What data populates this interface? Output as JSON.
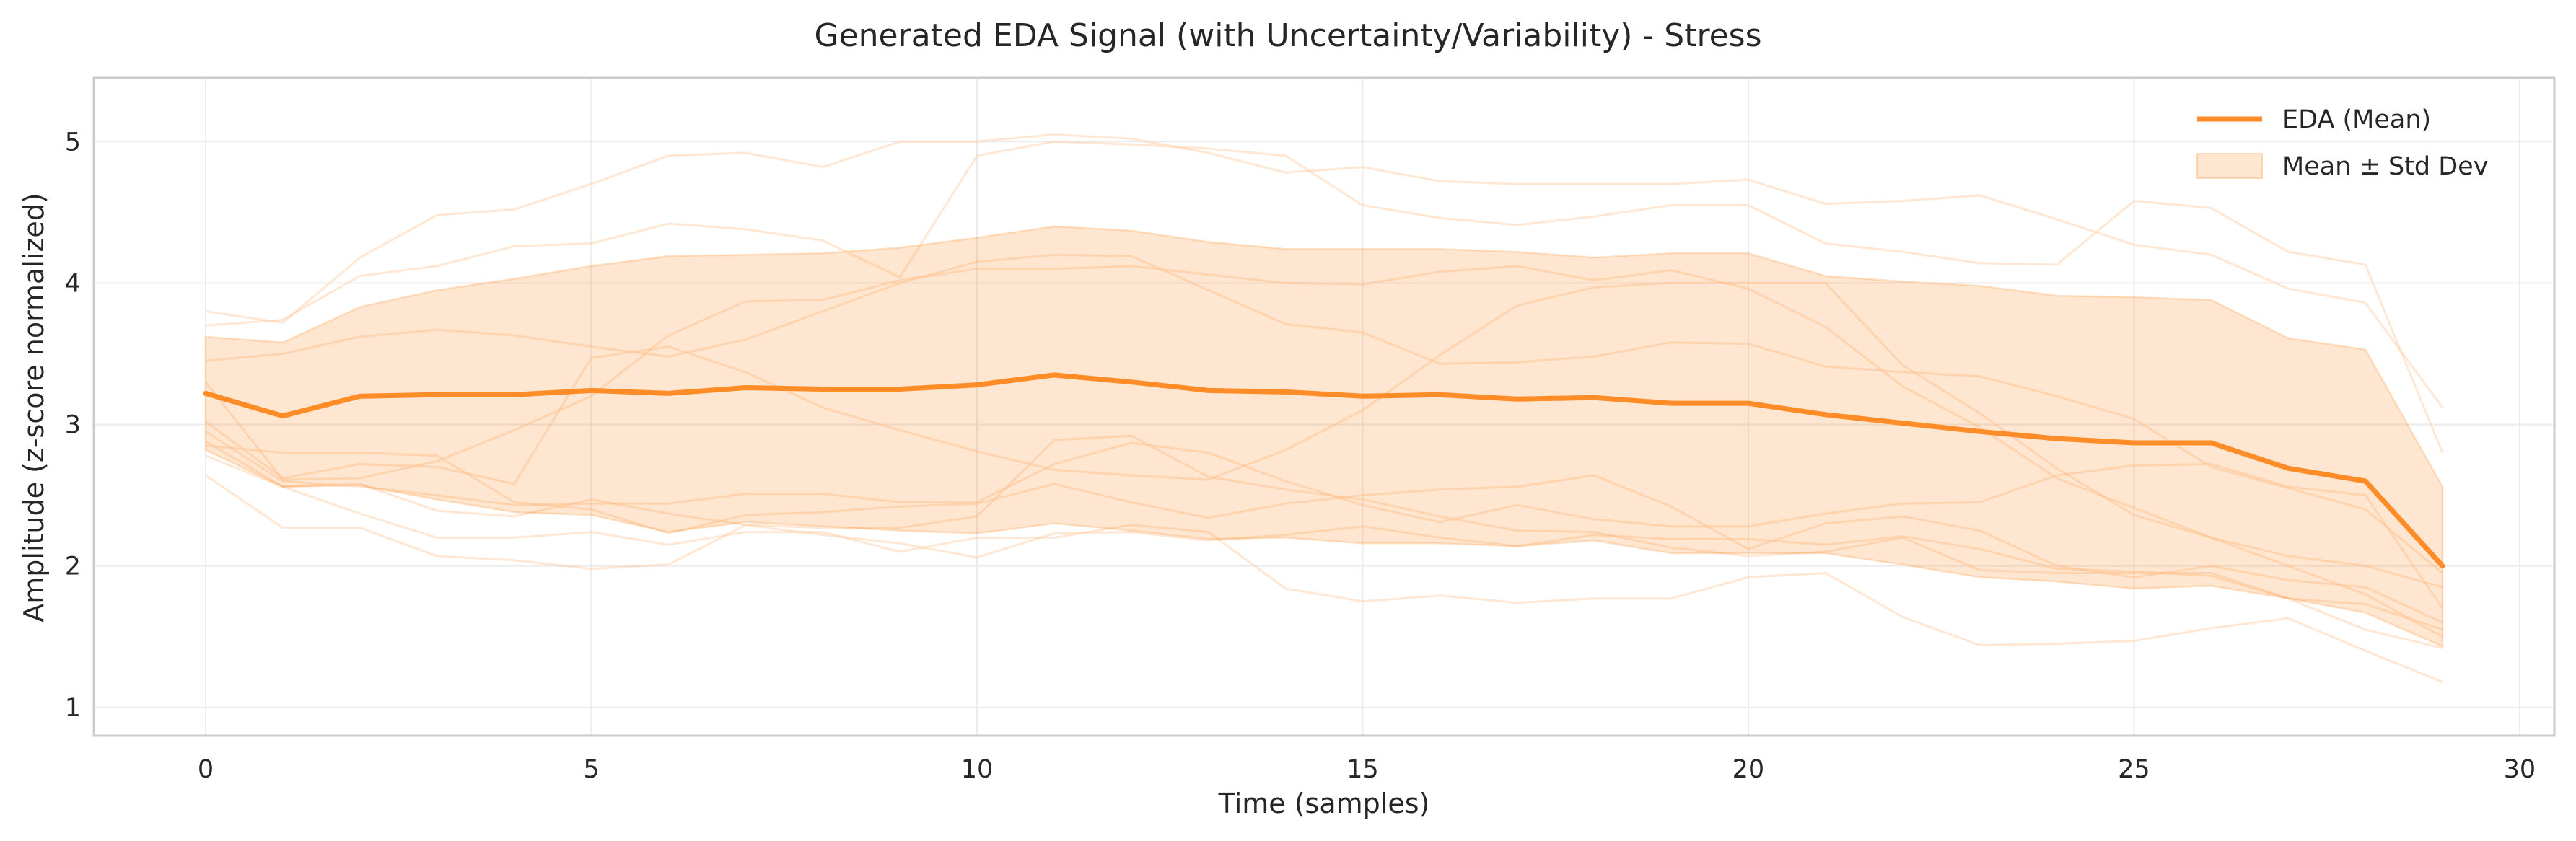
{
  "chart_data": {
    "type": "line",
    "title": "Generated EDA Signal (with Uncertainty/Variability) - Stress",
    "xlabel": "Time (samples)",
    "ylabel": "Amplitude (z-score normalized)",
    "xlim": [
      -1.45,
      30.45
    ],
    "ylim": [
      0.8,
      5.45
    ],
    "xticks": [
      0,
      5,
      10,
      15,
      20,
      25,
      30
    ],
    "yticks": [
      1,
      2,
      3,
      4,
      5
    ],
    "grid": true,
    "legend_position": "top-right",
    "colors": {
      "mean": "#ff8c27",
      "band": "#ffe4cc",
      "band_edge": "#f9cfa8",
      "samples": "#ffc9a0"
    },
    "x": [
      0,
      1,
      2,
      3,
      4,
      5,
      6,
      7,
      8,
      9,
      10,
      11,
      12,
      13,
      14,
      15,
      16,
      17,
      18,
      19,
      20,
      21,
      22,
      23,
      24,
      25,
      26,
      27,
      28,
      29
    ],
    "series": [
      {
        "name": "EDA (Mean)",
        "role": "mean",
        "values": [
          3.22,
          3.06,
          3.2,
          3.21,
          3.21,
          3.24,
          3.22,
          3.26,
          3.25,
          3.25,
          3.28,
          3.35,
          3.3,
          3.24,
          3.23,
          3.2,
          3.21,
          3.18,
          3.19,
          3.15,
          3.15,
          3.07,
          3.01,
          2.95,
          2.9,
          2.87,
          2.87,
          2.69,
          2.6,
          2.0
        ]
      },
      {
        "name": "Mean ± Std Dev",
        "role": "band",
        "upper": [
          3.62,
          3.58,
          3.83,
          3.95,
          4.03,
          4.12,
          4.19,
          4.2,
          4.21,
          4.25,
          4.32,
          4.4,
          4.37,
          4.29,
          4.24,
          4.24,
          4.24,
          4.22,
          4.18,
          4.21,
          4.21,
          4.05,
          4.01,
          3.98,
          3.91,
          3.9,
          3.88,
          3.61,
          3.53,
          2.56
        ],
        "lower": [
          2.82,
          2.56,
          2.57,
          2.47,
          2.38,
          2.36,
          2.24,
          2.31,
          2.28,
          2.25,
          2.23,
          2.3,
          2.25,
          2.19,
          2.2,
          2.16,
          2.16,
          2.14,
          2.18,
          2.09,
          2.09,
          2.09,
          2.01,
          1.92,
          1.89,
          1.84,
          1.86,
          1.77,
          1.67,
          1.43
        ]
      }
    ],
    "sample_traces": [
      [
        3.8,
        3.72,
        4.18,
        4.48,
        4.52,
        4.7,
        4.9,
        4.92,
        4.82,
        5.0,
        5.0,
        5.05,
        5.02,
        4.92,
        4.78,
        4.82,
        4.72,
        4.7,
        4.7,
        4.7,
        4.73,
        4.56,
        4.58,
        4.62,
        4.45,
        4.27,
        4.2,
        3.96,
        3.86,
        3.12
      ],
      [
        3.7,
        3.74,
        4.05,
        4.12,
        4.26,
        4.28,
        4.42,
        4.38,
        4.3,
        4.04,
        4.9,
        5.0,
        4.98,
        4.95,
        4.9,
        4.55,
        4.46,
        4.41,
        4.47,
        4.55,
        4.55,
        4.28,
        4.22,
        4.14,
        4.13,
        4.58,
        4.53,
        4.22,
        4.13,
        2.8
      ],
      [
        3.45,
        3.5,
        3.62,
        3.67,
        3.63,
        3.55,
        3.48,
        3.6,
        3.8,
        4.0,
        4.15,
        4.2,
        4.19,
        3.95,
        3.71,
        3.65,
        3.43,
        3.44,
        3.48,
        3.58,
        3.57,
        3.41,
        3.37,
        3.34,
        3.2,
        3.04,
        2.7,
        2.55,
        2.4,
        1.95
      ],
      [
        3.3,
        2.61,
        2.62,
        2.74,
        2.96,
        3.2,
        3.63,
        3.87,
        3.88,
        4.02,
        4.1,
        4.1,
        4.12,
        4.06,
        4.0,
        3.99,
        4.08,
        4.12,
        4.02,
        4.09,
        3.96,
        3.69,
        3.27,
        2.98,
        2.62,
        2.41,
        2.2,
        2.07,
        2.0,
        1.85
      ],
      [
        3.02,
        2.62,
        2.72,
        2.7,
        2.58,
        3.47,
        3.55,
        3.37,
        3.12,
        2.96,
        2.81,
        2.68,
        2.64,
        2.61,
        2.82,
        3.1,
        3.49,
        3.84,
        3.97,
        4.0,
        4.0,
        4.0,
        3.42,
        3.08,
        2.69,
        2.36,
        2.2,
        2.0,
        1.8,
        1.5
      ],
      [
        2.95,
        2.6,
        2.56,
        2.5,
        2.43,
        2.44,
        2.44,
        2.51,
        2.51,
        2.45,
        2.45,
        2.72,
        2.87,
        2.8,
        2.6,
        2.43,
        2.31,
        2.43,
        2.33,
        2.28,
        2.28,
        2.37,
        2.44,
        2.45,
        2.64,
        2.71,
        2.72,
        2.56,
        2.5,
        1.7
      ],
      [
        2.85,
        2.8,
        2.8,
        2.78,
        2.45,
        2.4,
        2.23,
        2.36,
        2.38,
        2.42,
        2.44,
        2.58,
        2.45,
        2.34,
        2.44,
        2.5,
        2.54,
        2.56,
        2.64,
        2.42,
        2.12,
        2.3,
        2.35,
        2.25,
        2.0,
        1.92,
        2.0,
        1.9,
        1.85,
        1.6
      ],
      [
        2.88,
        2.56,
        2.58,
        2.39,
        2.35,
        2.47,
        2.37,
        2.29,
        2.27,
        2.27,
        2.35,
        2.89,
        2.92,
        2.63,
        2.54,
        2.47,
        2.35,
        2.25,
        2.24,
        2.13,
        2.07,
        2.1,
        2.2,
        1.97,
        1.95,
        1.95,
        1.95,
        1.77,
        1.73,
        1.55
      ],
      [
        2.78,
        2.56,
        2.37,
        2.2,
        2.2,
        2.24,
        2.15,
        2.24,
        2.24,
        2.1,
        2.2,
        2.2,
        2.29,
        2.24,
        1.84,
        1.75,
        1.79,
        1.74,
        1.77,
        1.77,
        1.92,
        1.95,
        1.64,
        1.44,
        1.45,
        1.47,
        1.56,
        1.63,
        1.4,
        1.18
      ],
      [
        2.64,
        2.27,
        2.27,
        2.07,
        2.04,
        1.98,
        2.01,
        2.29,
        2.22,
        2.16,
        2.06,
        2.23,
        2.24,
        2.18,
        2.22,
        2.28,
        2.2,
        2.14,
        2.22,
        2.19,
        2.19,
        2.15,
        2.21,
        2.12,
        1.98,
        1.96,
        1.93,
        1.77,
        1.55,
        1.42
      ]
    ]
  }
}
